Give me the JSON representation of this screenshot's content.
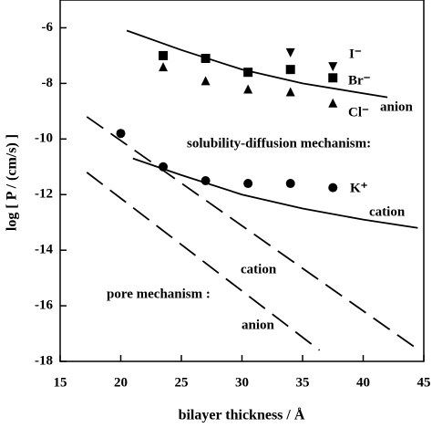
{
  "chart_data": {
    "type": "scatter",
    "xlabel": "bilayer thickness / Å",
    "ylabel": "log [ P / (cm/s) ]",
    "xlim": [
      15,
      45
    ],
    "ylim": [
      -18,
      -5
    ],
    "xticks": [
      15,
      20,
      25,
      30,
      35,
      40,
      45
    ],
    "yticks": [
      -18,
      -16,
      -14,
      -12,
      -10,
      -8,
      -6
    ],
    "series": [
      {
        "name": "I⁻",
        "marker": "triangle-down",
        "color": "#000",
        "x": [
          34,
          37.5
        ],
        "values": [
          -6.9,
          -7.4
        ]
      },
      {
        "name": "Br⁻",
        "marker": "square",
        "color": "#000",
        "x": [
          23.5,
          27,
          30.5,
          34,
          37.5
        ],
        "values": [
          -7.0,
          -7.1,
          -7.6,
          -7.5,
          -7.8
        ]
      },
      {
        "name": "Cl⁻",
        "marker": "triangle-up",
        "color": "#000",
        "x": [
          23.5,
          27,
          30.5,
          34,
          37.5
        ],
        "values": [
          -7.4,
          -7.9,
          -8.2,
          -8.3,
          -8.7
        ]
      },
      {
        "name": "K⁺",
        "marker": "circle",
        "color": "#000",
        "x": [
          20,
          23.5,
          27,
          30.5,
          34,
          37.5
        ],
        "values": [
          -9.8,
          -11.0,
          -11.5,
          -11.6,
          -11.6,
          -11.75
        ]
      }
    ],
    "curves": [
      {
        "style": "solid",
        "x": [
          20.5,
          25,
          30,
          35,
          42
        ],
        "y": [
          -6.1,
          -6.8,
          -7.5,
          -8.0,
          -8.5
        ]
      },
      {
        "style": "solid",
        "x": [
          21,
          25,
          30,
          35,
          40,
          44.5
        ],
        "y": [
          -10.7,
          -11.3,
          -12.0,
          -12.5,
          -12.9,
          -13.2
        ]
      },
      {
        "style": "dashed",
        "x": [
          17.2,
          44.3
        ],
        "y": [
          -9.2,
          -17.5
        ]
      },
      {
        "style": "dashed",
        "x": [
          17.2,
          36.4
        ],
        "y": [
          -11.2,
          -17.6
        ]
      }
    ],
    "annotations": [
      "anion",
      "solubility-diffusion mechanism:",
      "cation",
      "cation",
      "pore mechanism :",
      "anion"
    ]
  }
}
